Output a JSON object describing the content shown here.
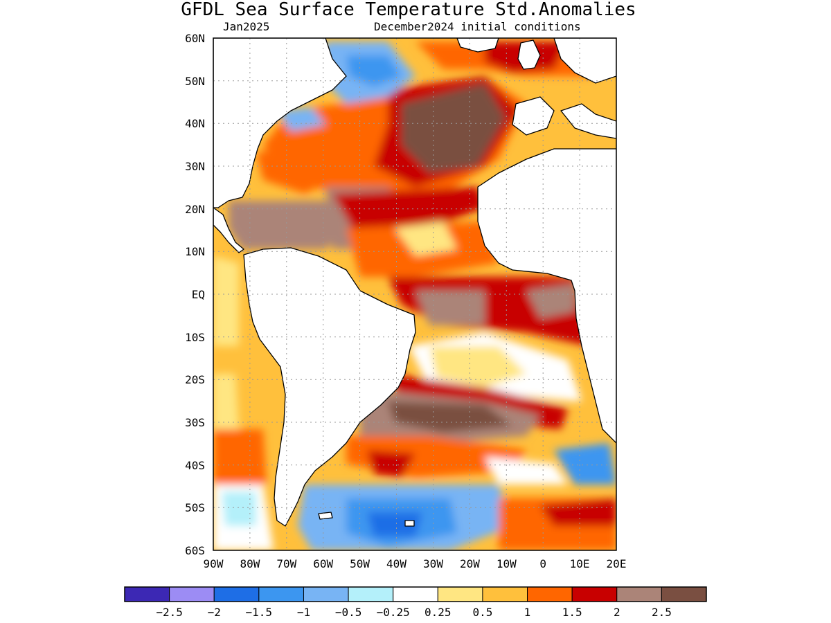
{
  "title": "GFDL Sea Surface Temperature Std.Anomalies",
  "valid_month": "Jan2025",
  "initial_conditions": "December2024 initial conditions",
  "lat_labels": [
    "60N",
    "50N",
    "40N",
    "30N",
    "20N",
    "10N",
    "EQ",
    "10S",
    "20S",
    "30S",
    "40S",
    "50S",
    "60S"
  ],
  "lon_labels": [
    "90W",
    "80W",
    "70W",
    "60W",
    "50W",
    "40W",
    "30W",
    "20W",
    "10W",
    "0",
    "10E",
    "20E"
  ],
  "colorbar": {
    "colors": [
      "#3c28b4",
      "#9c8cf4",
      "#1e6ee6",
      "#3c96f0",
      "#78b4f4",
      "#b4f0fa",
      "#ffffff",
      "#ffe682",
      "#ffc03c",
      "#ff6600",
      "#c80000",
      "#ab8478",
      "#7a4f41"
    ],
    "labels": [
      "−2.5",
      "−2",
      "−1.5",
      "−1",
      "−0.5",
      "−0.25",
      "0.25",
      "0.5",
      "1",
      "1.5",
      "2",
      "2.5"
    ]
  },
  "legend_colors": {
    "land": "#ffffff",
    "coast": "#000000",
    "grid": "#999999"
  }
}
